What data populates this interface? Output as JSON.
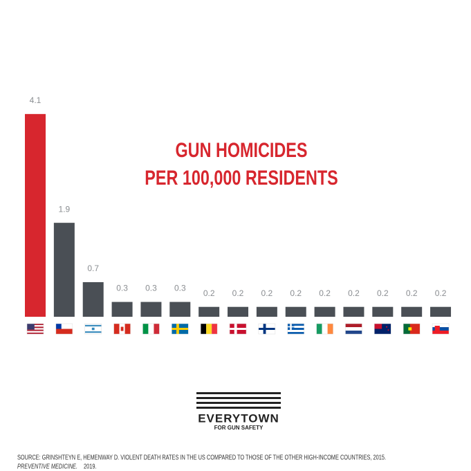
{
  "chart_data": {
    "type": "bar",
    "title": [
      "GUN HOMICIDES",
      "PER 100,000 RESIDENTS"
    ],
    "categories": [
      null,
      null,
      null,
      null,
      null,
      null,
      null,
      null,
      null,
      null,
      null,
      null,
      null,
      null,
      null
    ],
    "values": [
      4.1,
      1.9,
      0.7,
      0.3,
      0.3,
      0.3,
      0.2,
      0.2,
      0.2,
      0.2,
      0.2,
      0.2,
      0.2,
      0.2,
      0.2
    ],
    "colors": [
      "#d7262e",
      "#4a4f55",
      "#4a4f55",
      "#4a4f55",
      "#4a4f55",
      "#4a4f55",
      "#4a4f55",
      "#4a4f55",
      "#4a4f55",
      "#4a4f55",
      "#4a4f55",
      "#4a4f55",
      "#4a4f55",
      "#4a4f55",
      "#4a4f55"
    ]
  },
  "logo": {
    "name": "EVERYTOWN",
    "tagline": "FOR GUN SAFETY"
  },
  "source": {
    "text": "SOURCE: GRINSHTEYN E, HEMENWAY D. VIOLENT DEATH RATES IN THE US COMPARED TO THOSE OF THE OTHER HIGH-INCOME COUNTRIES, 2015.",
    "journal": "PREVENTIVE MEDICINE.",
    "year": "2019."
  }
}
